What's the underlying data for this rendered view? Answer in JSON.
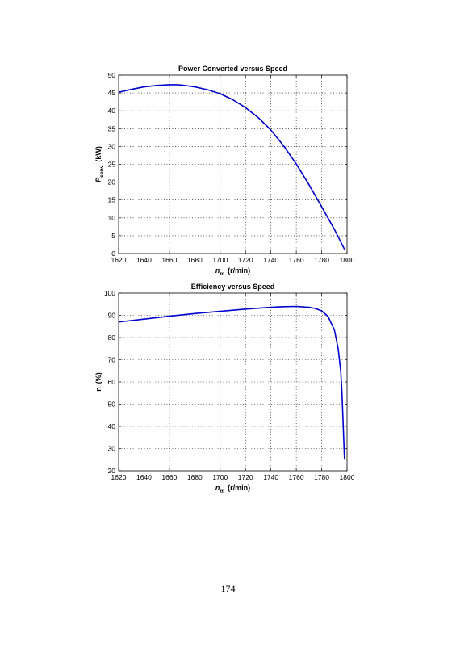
{
  "page": {
    "page_number": "174"
  },
  "chart_data": [
    {
      "type": "line",
      "title": "Power Converted versus Speed",
      "xlabel_main": "n",
      "xlabel_sub": "m",
      "xlabel_unit": "(r/min)",
      "ylabel_main": "P",
      "ylabel_sub": "conv",
      "ylabel_unit": "(kW)",
      "xlim": [
        1620,
        1800
      ],
      "ylim": [
        0,
        50
      ],
      "xticks": [
        1620,
        1640,
        1660,
        1680,
        1700,
        1720,
        1740,
        1760,
        1780,
        1800
      ],
      "yticks": [
        0,
        5,
        10,
        15,
        20,
        25,
        30,
        35,
        40,
        45,
        50
      ],
      "grid": true,
      "line_color": "#0000cc",
      "series": [
        {
          "x": [
            1620,
            1630,
            1640,
            1650,
            1660,
            1665,
            1670,
            1680,
            1690,
            1700,
            1710,
            1720,
            1730,
            1740,
            1750,
            1760,
            1770,
            1780,
            1790,
            1798
          ],
          "values": [
            45.2,
            46.0,
            46.7,
            47.1,
            47.3,
            47.3,
            47.2,
            46.7,
            45.9,
            44.8,
            43.1,
            40.9,
            38.1,
            34.6,
            30.2,
            25.1,
            19.3,
            13.1,
            6.8,
            1.2
          ]
        }
      ]
    },
    {
      "type": "line",
      "title": "Efficiency versus Speed",
      "xlabel_main": "n",
      "xlabel_sub": "m",
      "xlabel_unit": "(r/min)",
      "ylabel_main": "η",
      "ylabel_unit": "(%)",
      "xlim": [
        1620,
        1800
      ],
      "ylim": [
        20,
        100
      ],
      "xticks": [
        1620,
        1640,
        1660,
        1680,
        1700,
        1720,
        1740,
        1760,
        1780,
        1800
      ],
      "yticks": [
        20,
        30,
        40,
        50,
        60,
        70,
        80,
        90,
        100
      ],
      "grid": true,
      "line_color": "#0000cc",
      "series": [
        {
          "x": [
            1620,
            1640,
            1660,
            1680,
            1700,
            1720,
            1740,
            1750,
            1760,
            1770,
            1775,
            1780,
            1785,
            1790,
            1793,
            1795,
            1796,
            1797,
            1798
          ],
          "values": [
            87.0,
            88.3,
            89.6,
            90.8,
            91.8,
            92.8,
            93.6,
            93.9,
            94.0,
            93.6,
            93.1,
            92.0,
            89.5,
            83.5,
            75.0,
            65.0,
            55.0,
            40.0,
            25.0
          ]
        }
      ]
    }
  ]
}
